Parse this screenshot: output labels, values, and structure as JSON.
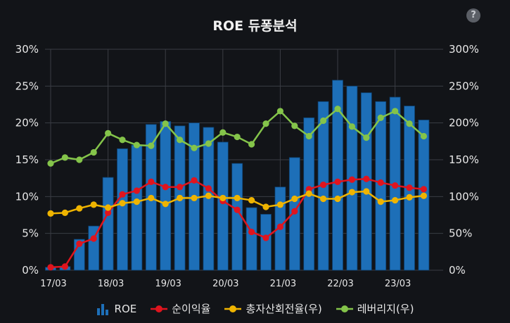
{
  "title": "ROE 듀퐁분석",
  "help_label": "?",
  "legend": {
    "roe": "ROE",
    "net_margin": "순이익율",
    "asset_turnover": "총자산회전율(우)",
    "leverage": "레버리지(우)"
  },
  "colors": {
    "bar": "#1d6fb8",
    "net_margin": "#e0141e",
    "asset_turnover": "#efb400",
    "leverage": "#84c44a",
    "grid": "#3a3d44"
  },
  "chart_data": {
    "type": "bar",
    "x_ticks": [
      "17/03",
      "18/03",
      "19/03",
      "20/03",
      "21/03",
      "22/03",
      "23/03"
    ],
    "left_axis": {
      "ylim": [
        0,
        30
      ],
      "ticks": [
        "0%",
        "5%",
        "10%",
        "15%",
        "20%",
        "25%",
        "30%"
      ]
    },
    "right_axis": {
      "ylim": [
        0,
        300
      ],
      "ticks": [
        "0%",
        "50%",
        "100%",
        "150%",
        "200%",
        "250%",
        "300%"
      ]
    },
    "grid": true,
    "legend_position": "bottom",
    "series": [
      {
        "name": "ROE",
        "type": "bar",
        "axis": "left",
        "values": [
          0.4,
          0.5,
          4.2,
          6.0,
          12.6,
          16.5,
          17.0,
          19.8,
          20.2,
          19.6,
          20.0,
          19.4,
          17.4,
          14.5,
          8.5,
          7.6,
          11.3,
          15.3,
          20.7,
          22.9,
          25.8,
          25.0,
          24.1,
          22.9,
          23.5,
          22.3,
          20.4
        ]
      },
      {
        "name": "순이익율",
        "type": "line",
        "axis": "left",
        "values": [
          0.4,
          0.5,
          3.6,
          4.3,
          7.8,
          10.3,
          10.8,
          12.0,
          11.3,
          11.3,
          12.2,
          11.1,
          9.4,
          8.2,
          5.2,
          4.4,
          5.9,
          8.0,
          11.0,
          11.6,
          12.0,
          12.3,
          12.4,
          11.9,
          11.5,
          11.2,
          11.0
        ]
      },
      {
        "name": "총자산회전율(우)",
        "type": "line",
        "axis": "right",
        "values": [
          77,
          78,
          84,
          89,
          85,
          91,
          93,
          98,
          90,
          98,
          98,
          101,
          98,
          98,
          95,
          86,
          89,
          97,
          104,
          97,
          97,
          106,
          107,
          93,
          95,
          99,
          101
        ]
      },
      {
        "name": "레버리지(우)",
        "type": "line",
        "axis": "right",
        "values": [
          145,
          153,
          150,
          160,
          186,
          177,
          170,
          169,
          199,
          177,
          166,
          172,
          187,
          181,
          171,
          199,
          216,
          196,
          182,
          203,
          219,
          195,
          180,
          207,
          216,
          199,
          182
        ]
      }
    ]
  }
}
